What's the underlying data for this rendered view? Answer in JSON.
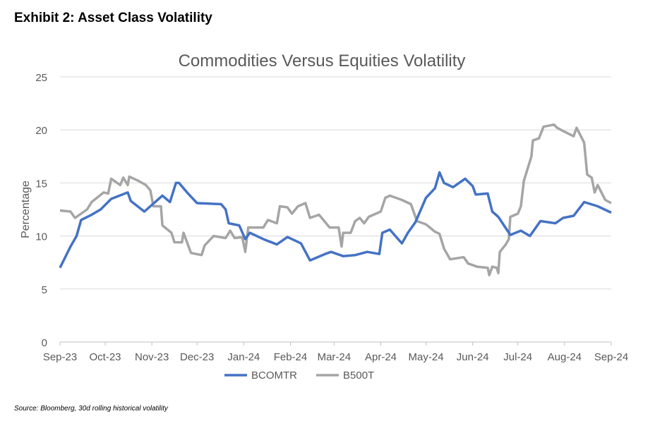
{
  "header": "Exhibit 2: Asset Class Volatility",
  "source": "Source: Bloomberg, 30d rolling historical volatility",
  "chart_data": {
    "type": "line",
    "title": "Commodities Versus Equities Volatility",
    "xlabel": "",
    "ylabel": "Percentage",
    "xlim": [
      "2023-09-01",
      "2024-09-01"
    ],
    "ylim": [
      0,
      25
    ],
    "yticks": [
      0,
      5,
      10,
      15,
      20,
      25
    ],
    "xticks": [
      {
        "date": "2023-09-01",
        "label": "Sep-23"
      },
      {
        "date": "2023-10-01",
        "label": "Oct-23"
      },
      {
        "date": "2023-11-01",
        "label": "Nov-23"
      },
      {
        "date": "2023-12-01",
        "label": "Dec-23"
      },
      {
        "date": "2024-01-01",
        "label": "Jan-24"
      },
      {
        "date": "2024-02-01",
        "label": "Feb-24"
      },
      {
        "date": "2024-03-01",
        "label": "Mar-24"
      },
      {
        "date": "2024-04-01",
        "label": "Apr-24"
      },
      {
        "date": "2024-05-01",
        "label": "May-24"
      },
      {
        "date": "2024-06-01",
        "label": "Jun-24"
      },
      {
        "date": "2024-07-01",
        "label": "Jul-24"
      },
      {
        "date": "2024-08-01",
        "label": "Aug-24"
      },
      {
        "date": "2024-09-01",
        "label": "Sep-24"
      }
    ],
    "grid": "horizontal",
    "legend": "bottom",
    "series": [
      {
        "name": "BCOMTR",
        "color": "#4472c4",
        "points": [
          [
            "2023-09-01",
            7.0
          ],
          [
            "2023-09-08",
            9.0
          ],
          [
            "2023-09-12",
            10.0
          ],
          [
            "2023-09-15",
            11.5
          ],
          [
            "2023-09-22",
            12.0
          ],
          [
            "2023-09-28",
            12.5
          ],
          [
            "2023-10-05",
            13.5
          ],
          [
            "2023-10-16",
            14.1
          ],
          [
            "2023-10-18",
            13.3
          ],
          [
            "2023-10-27",
            12.3
          ],
          [
            "2023-11-08",
            13.8
          ],
          [
            "2023-11-13",
            13.2
          ],
          [
            "2023-11-17",
            15.0
          ],
          [
            "2023-11-19",
            15.0
          ],
          [
            "2023-11-25",
            14.0
          ],
          [
            "2023-12-01",
            13.1
          ],
          [
            "2023-12-17",
            13.0
          ],
          [
            "2023-12-20",
            12.5
          ],
          [
            "2023-12-22",
            11.2
          ],
          [
            "2023-12-29",
            11.0
          ],
          [
            "2024-01-02",
            9.7
          ],
          [
            "2024-01-05",
            10.3
          ],
          [
            "2024-01-14",
            9.7
          ],
          [
            "2024-01-23",
            9.2
          ],
          [
            "2024-01-30",
            9.9
          ],
          [
            "2024-02-08",
            9.3
          ],
          [
            "2024-02-14",
            7.7
          ],
          [
            "2024-02-24",
            8.3
          ],
          [
            "2024-02-28",
            8.5
          ],
          [
            "2024-03-07",
            8.1
          ],
          [
            "2024-03-15",
            8.2
          ],
          [
            "2024-03-23",
            8.5
          ],
          [
            "2024-03-31",
            8.3
          ],
          [
            "2024-04-02",
            10.3
          ],
          [
            "2024-04-07",
            10.6
          ],
          [
            "2024-04-15",
            9.3
          ],
          [
            "2024-04-19",
            10.3
          ],
          [
            "2024-04-24",
            11.3
          ],
          [
            "2024-05-01",
            13.6
          ],
          [
            "2024-05-07",
            14.5
          ],
          [
            "2024-05-10",
            16.0
          ],
          [
            "2024-05-13",
            15.0
          ],
          [
            "2024-05-19",
            14.6
          ],
          [
            "2024-05-27",
            15.4
          ],
          [
            "2024-06-01",
            14.7
          ],
          [
            "2024-06-03",
            13.9
          ],
          [
            "2024-06-11",
            14.0
          ],
          [
            "2024-06-14",
            12.3
          ],
          [
            "2024-06-18",
            11.8
          ],
          [
            "2024-06-26",
            10.1
          ],
          [
            "2024-07-03",
            10.5
          ],
          [
            "2024-07-09",
            10.0
          ],
          [
            "2024-07-16",
            11.4
          ],
          [
            "2024-07-26",
            11.2
          ],
          [
            "2024-07-31",
            11.7
          ],
          [
            "2024-08-07",
            11.9
          ],
          [
            "2024-08-14",
            13.2
          ],
          [
            "2024-08-23",
            12.8
          ],
          [
            "2024-09-01",
            12.2
          ]
        ]
      },
      {
        "name": "B500T",
        "color": "#a5a5a5",
        "points": [
          [
            "2023-09-01",
            12.4
          ],
          [
            "2023-09-08",
            12.3
          ],
          [
            "2023-09-11",
            11.7
          ],
          [
            "2023-09-19",
            12.5
          ],
          [
            "2023-09-22",
            13.2
          ],
          [
            "2023-09-30",
            14.1
          ],
          [
            "2023-10-03",
            14.0
          ],
          [
            "2023-10-05",
            15.4
          ],
          [
            "2023-10-11",
            14.8
          ],
          [
            "2023-10-13",
            15.5
          ],
          [
            "2023-10-16",
            14.8
          ],
          [
            "2023-10-17",
            15.6
          ],
          [
            "2023-10-23",
            15.2
          ],
          [
            "2023-10-28",
            14.8
          ],
          [
            "2023-10-31",
            14.3
          ],
          [
            "2023-11-02",
            12.8
          ],
          [
            "2023-11-07",
            12.8
          ],
          [
            "2023-11-08",
            11.0
          ],
          [
            "2023-11-14",
            10.3
          ],
          [
            "2023-11-16",
            9.4
          ],
          [
            "2023-11-21",
            9.4
          ],
          [
            "2023-11-22",
            10.3
          ],
          [
            "2023-11-27",
            8.4
          ],
          [
            "2023-12-04",
            8.2
          ],
          [
            "2023-12-06",
            9.1
          ],
          [
            "2023-12-12",
            10.0
          ],
          [
            "2023-12-20",
            9.8
          ],
          [
            "2023-12-23",
            10.5
          ],
          [
            "2023-12-26",
            9.8
          ],
          [
            "2023-12-31",
            9.9
          ],
          [
            "2024-01-02",
            8.5
          ],
          [
            "2024-01-04",
            10.8
          ],
          [
            "2024-01-14",
            10.8
          ],
          [
            "2024-01-17",
            11.5
          ],
          [
            "2024-01-23",
            11.2
          ],
          [
            "2024-01-25",
            12.8
          ],
          [
            "2024-01-30",
            12.7
          ],
          [
            "2024-02-02",
            12.1
          ],
          [
            "2024-02-06",
            12.8
          ],
          [
            "2024-02-11",
            13.1
          ],
          [
            "2024-02-14",
            11.7
          ],
          [
            "2024-02-20",
            12.0
          ],
          [
            "2024-02-27",
            10.8
          ],
          [
            "2024-03-04",
            10.8
          ],
          [
            "2024-03-06",
            9.0
          ],
          [
            "2024-03-07",
            10.3
          ],
          [
            "2024-03-12",
            10.3
          ],
          [
            "2024-03-15",
            11.4
          ],
          [
            "2024-03-18",
            11.7
          ],
          [
            "2024-03-21",
            11.2
          ],
          [
            "2024-03-24",
            11.8
          ],
          [
            "2024-04-01",
            12.3
          ],
          [
            "2024-04-04",
            13.6
          ],
          [
            "2024-04-07",
            13.8
          ],
          [
            "2024-04-15",
            13.4
          ],
          [
            "2024-04-21",
            13.0
          ],
          [
            "2024-04-25",
            11.4
          ],
          [
            "2024-05-01",
            11.1
          ],
          [
            "2024-05-07",
            10.4
          ],
          [
            "2024-05-10",
            10.2
          ],
          [
            "2024-05-13",
            8.8
          ],
          [
            "2024-05-17",
            7.8
          ],
          [
            "2024-05-26",
            8.0
          ],
          [
            "2024-05-29",
            7.4
          ],
          [
            "2024-06-04",
            7.1
          ],
          [
            "2024-06-11",
            7.0
          ],
          [
            "2024-06-12",
            6.3
          ],
          [
            "2024-06-14",
            7.1
          ],
          [
            "2024-06-17",
            7.0
          ],
          [
            "2024-06-18",
            6.5
          ],
          [
            "2024-06-19",
            8.5
          ],
          [
            "2024-06-23",
            9.2
          ],
          [
            "2024-06-25",
            9.7
          ],
          [
            "2024-06-26",
            11.8
          ],
          [
            "2024-07-01",
            12.1
          ],
          [
            "2024-07-03",
            12.8
          ],
          [
            "2024-07-05",
            15.2
          ],
          [
            "2024-07-10",
            17.5
          ],
          [
            "2024-07-11",
            19.0
          ],
          [
            "2024-07-15",
            19.2
          ],
          [
            "2024-07-18",
            20.3
          ],
          [
            "2024-07-25",
            20.5
          ],
          [
            "2024-07-27",
            20.2
          ],
          [
            "2024-07-31",
            19.9
          ],
          [
            "2024-08-07",
            19.4
          ],
          [
            "2024-08-09",
            20.2
          ],
          [
            "2024-08-14",
            18.8
          ],
          [
            "2024-08-16",
            15.8
          ],
          [
            "2024-08-19",
            15.5
          ],
          [
            "2024-08-21",
            14.1
          ],
          [
            "2024-08-23",
            14.8
          ],
          [
            "2024-08-28",
            13.4
          ],
          [
            "2024-09-01",
            13.1
          ]
        ]
      }
    ]
  }
}
